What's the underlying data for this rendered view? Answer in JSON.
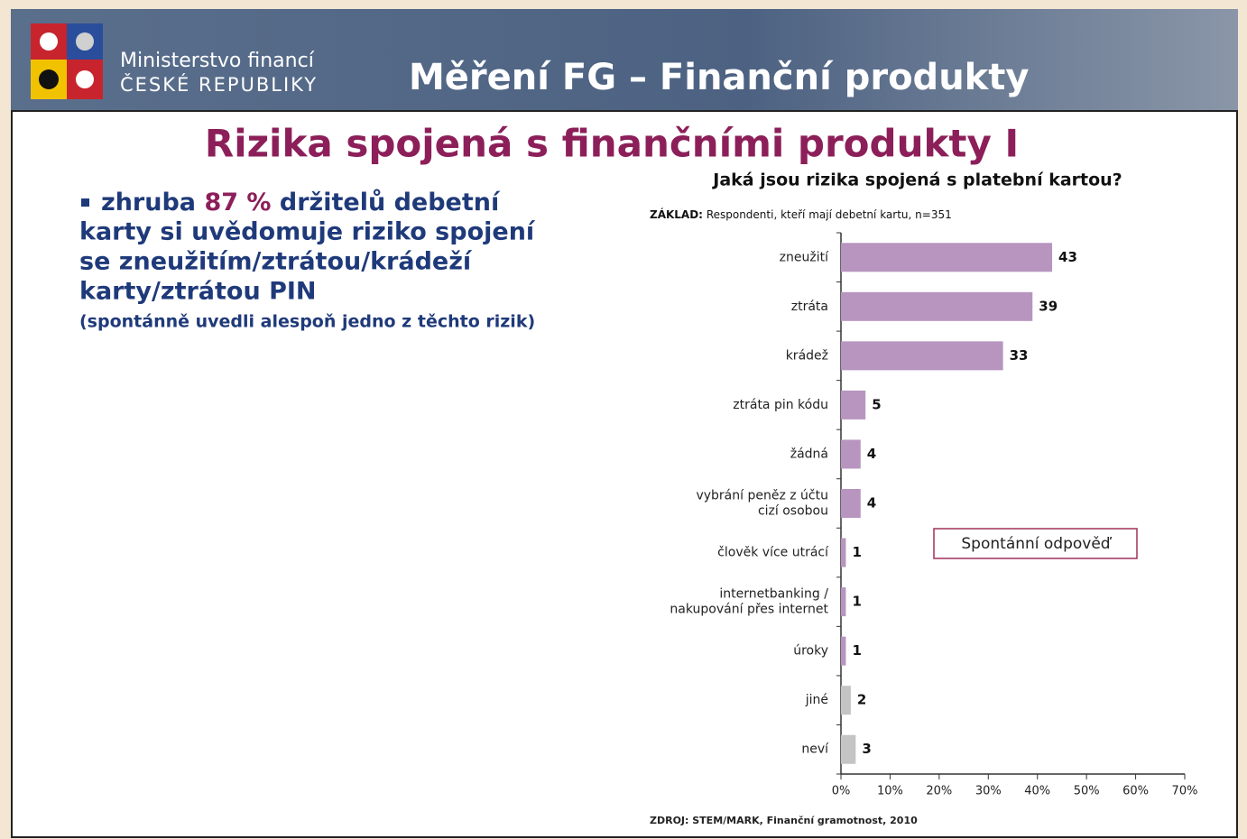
{
  "header": {
    "ministry_line1": "Ministerstvo financí",
    "ministry_line2": "ČESKÉ REPUBLIKY",
    "title": "Měření FG – Finanční produkty"
  },
  "slide_title": "Rizika spojená s finančními produkty I",
  "bullet": {
    "prefix": "zhruba",
    "highlight": "87 %",
    "lines": [
      "držitelů debetní",
      "karty si uvědomuje riziko spojení",
      "se zneužitím/ztrátou/krádeží",
      "karty/ztrátou PIN"
    ],
    "note": "(spontánně uvedli alespoň jedno z těchto rizik)"
  },
  "chart_data": {
    "type": "bar",
    "orientation": "horizontal",
    "title": "Jaká jsou rizika spojená s platební kartou?",
    "base_label": "ZÁKLAD:",
    "base_text": "Respondenti, kteří mají debetní kartu, n=351",
    "categories": [
      "zneužití",
      "ztráta",
      "krádež",
      "ztráta pin kódu",
      "žádná",
      "vybrání peněz z účtu\ncizí osobou",
      "člověk více utrácí",
      "internetbanking /\nnakupování přes internet",
      "úroky",
      "jiné",
      "neví"
    ],
    "values": [
      43,
      39,
      33,
      5,
      4,
      4,
      1,
      1,
      1,
      2,
      3
    ],
    "colors": [
      "#b795bf",
      "#b795bf",
      "#b795bf",
      "#b795bf",
      "#b795bf",
      "#b795bf",
      "#b795bf",
      "#b795bf",
      "#b795bf",
      "#c4c4c4",
      "#c4c4c4"
    ],
    "xlim": [
      0,
      70
    ],
    "xticks": [
      {
        "value": 0,
        "label": "0%"
      },
      {
        "value": 10,
        "label": "10%"
      },
      {
        "value": 20,
        "label": "20%"
      },
      {
        "value": 30,
        "label": "30%"
      },
      {
        "value": 40,
        "label": "40%"
      },
      {
        "value": 50,
        "label": "50%"
      },
      {
        "value": 60,
        "label": "60%"
      },
      {
        "value": 70,
        "label": "70%"
      }
    ],
    "legend_text": "Spontánní odpověď",
    "source": "ZDROJ: STEM/MARK, Finanční gramotnost, 2010"
  }
}
